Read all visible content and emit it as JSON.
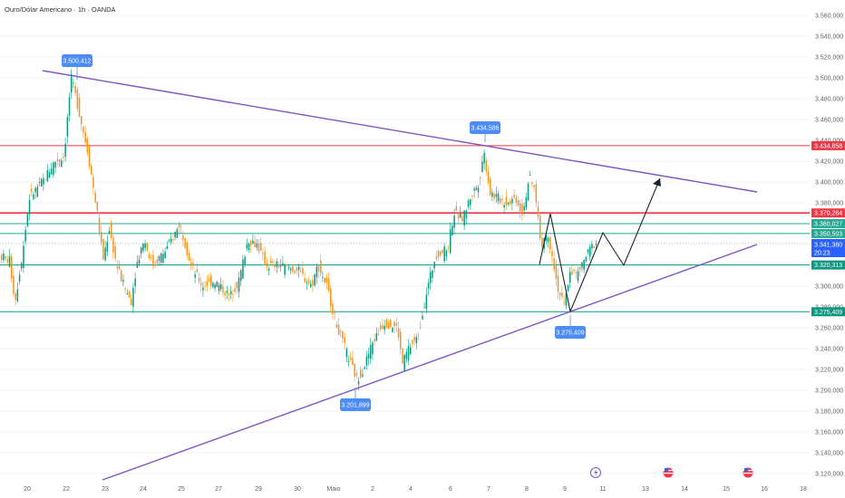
{
  "header": {
    "title": "Ouro/Dólar Americano · 1h · OANDA"
  },
  "chart_data": {
    "type": "candlestick",
    "symbol": "Ouro/Dólar Americano",
    "timeframe": "1h",
    "source": "OANDA",
    "y_ticks": [
      "3.120,000",
      "3.140,000",
      "3.160,000",
      "3.180,000",
      "3.200,000",
      "3.220,000",
      "3.240,000",
      "3.260,000",
      "3.280,000",
      "3.300,000",
      "3.320,000",
      "3.340,000",
      "3.360,000",
      "3.380,000",
      "3.400,000",
      "3.420,000",
      "3.440,000",
      "3.460,000",
      "3.480,000",
      "3.500,000",
      "3.520,000",
      "3.540,000",
      "3.560,000"
    ],
    "x_ticks": [
      "20",
      "22",
      "23",
      "24",
      "25",
      "27",
      "29",
      "30",
      "Maio",
      "2",
      "4",
      "6",
      "7",
      "8",
      "9",
      "11",
      "13",
      "14",
      "15",
      "16",
      "18"
    ],
    "ylim": [
      3112,
      3566
    ],
    "horizontal_levels": [
      {
        "price": 3434.858,
        "label": "3.434,858",
        "color": "#f23645"
      },
      {
        "price": 3370.264,
        "label": "3.370,264",
        "color": "#f23645"
      },
      {
        "price": 3360.027,
        "label": "3.360,027",
        "color": "#22ab94"
      },
      {
        "price": 3350.503,
        "label": "3.350,503",
        "color": "#22ab94"
      },
      {
        "price": 3320.313,
        "label": "3.320,313",
        "color": "#089981"
      },
      {
        "price": 3275.409,
        "label": "3.275,409",
        "color": "#089981"
      }
    ],
    "current_price": {
      "label": "3.341,360",
      "countdown": "20:23",
      "color": "#2962ff"
    },
    "callouts": [
      {
        "label": "3.500,412"
      },
      {
        "label": "3.434,586"
      },
      {
        "label": "3.201,899"
      },
      {
        "label": "3.275,409"
      }
    ],
    "trendlines": [
      {
        "name": "upper",
        "from": [
          22,
          3504
        ],
        "to": [
          15.6,
          3392
        ],
        "color": "#7e57c2"
      },
      {
        "name": "lower",
        "from": [
          23,
          3112
        ],
        "to": [
          15.6,
          3345
        ],
        "color": "#7e57c2"
      }
    ],
    "colors": {
      "up": "#089981",
      "down": "#f7931a",
      "trend": "#7e57c2",
      "callout": "#4c8cf5"
    }
  }
}
